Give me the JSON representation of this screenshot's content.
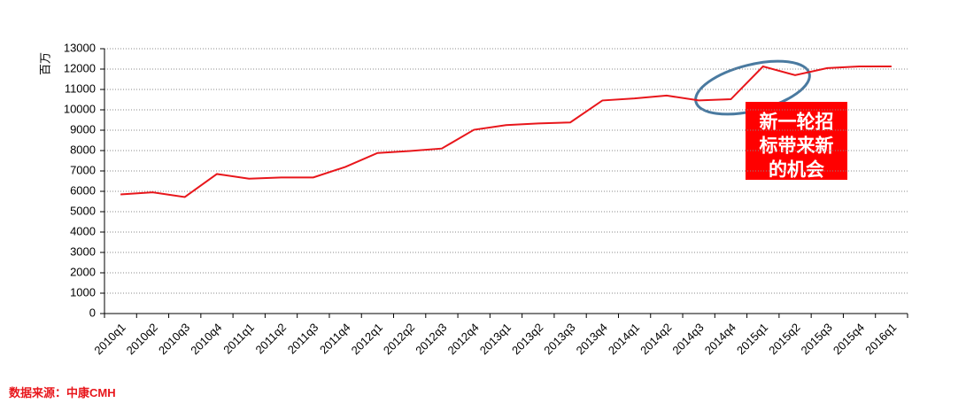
{
  "chart_data": {
    "type": "line",
    "ylabel": "百万",
    "categories": [
      "2010q1",
      "2010q2",
      "2010q3",
      "2010q4",
      "2011q1",
      "2011q2",
      "2011q3",
      "2011q4",
      "2012q1",
      "2012q2",
      "2012q3",
      "2012q4",
      "2013q1",
      "2013q2",
      "2013q3",
      "2013q4",
      "2014q1",
      "2014q2",
      "2014q3",
      "2014q4",
      "2015q1",
      "2015q2",
      "2015q3",
      "2015q4",
      "2016q1"
    ],
    "series": [
      {
        "color": "#e8161b",
        "values": [
          5850,
          5950,
          5720,
          6850,
          6620,
          6680,
          6680,
          7200,
          7880,
          7980,
          8100,
          9020,
          9250,
          9330,
          9380,
          10460,
          10560,
          10700,
          10460,
          10520,
          12130,
          11700,
          12050,
          12130,
          12130
        ]
      }
    ],
    "ylim": [
      0,
      13000
    ],
    "yticks": [
      0,
      1000,
      2000,
      3000,
      4000,
      5000,
      6000,
      7000,
      8000,
      9000,
      10000,
      11000,
      12000,
      13000
    ],
    "grid": true,
    "annotation": [
      "新一轮招",
      "标带来新",
      "的机会"
    ],
    "source": "数据来源：中康CMH"
  }
}
